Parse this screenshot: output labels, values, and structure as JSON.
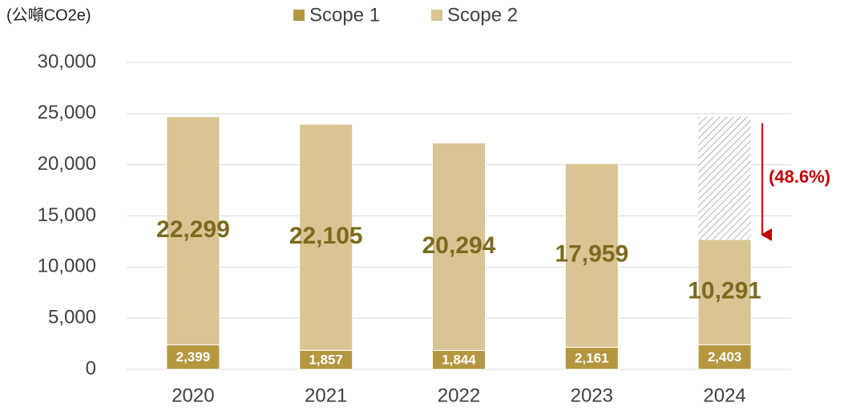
{
  "chart_data": {
    "type": "stacked_bar",
    "unit_label": "(公噸CO2e)",
    "categories": [
      "2020",
      "2021",
      "2022",
      "2023",
      "2024"
    ],
    "series": [
      {
        "name": "Scope 1",
        "color": "#b5973f",
        "values": [
          2399,
          1857,
          1844,
          2161,
          2403
        ],
        "value_labels": [
          "2,399",
          "1,857",
          "1,844",
          "2,161",
          "2,403"
        ]
      },
      {
        "name": "Scope 2",
        "color": "#d9c494",
        "values": [
          22299,
          22105,
          20294,
          17959,
          10291
        ],
        "value_labels": [
          "22,299",
          "22,105",
          "20,294",
          "17,959",
          "10,291"
        ]
      }
    ],
    "ylim": [
      0,
      30000
    ],
    "yticks": [
      0,
      {
        "value": 5000,
        "label": "5,000"
      },
      {
        "value": 10000,
        "label": "10,000"
      },
      {
        "value": 15000,
        "label": "15,000"
      },
      {
        "value": 20000,
        "label": "20,000"
      },
      {
        "value": 25000,
        "label": "25,000"
      },
      {
        "value": 30000,
        "label": "30,000"
      }
    ],
    "grid": true,
    "legend": "top",
    "annotation": "(48.6%)"
  }
}
